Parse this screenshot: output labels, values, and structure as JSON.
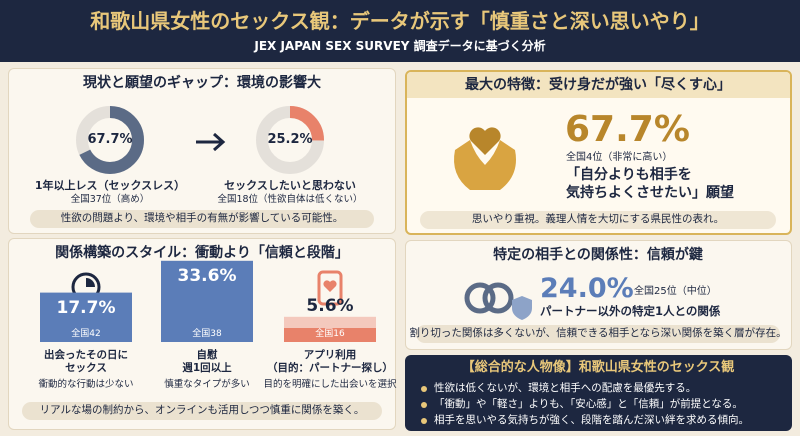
{
  "header": {
    "title": "和歌山県女性のセックス観：データが示す「慎重さと深い思いやり」",
    "subtitle": "JEX JAPAN SEX SURVEY 調査データに基づく分析"
  },
  "gap_section": {
    "title": "現状と願望のギャップ：環境の影響大",
    "stats": [
      {
        "value": 67.7,
        "label": "67.7%",
        "caption": "1年以上レス（セックスレス）",
        "rank": "全国37位（高め）"
      },
      {
        "value": 25.2,
        "label": "25.2%",
        "caption": "セックスしたいと思わない",
        "rank": "全国18位（性欲自体は低くない）"
      }
    ],
    "note": "性欲の問題より、環境や相手の有無が影響している可能性。"
  },
  "style_section": {
    "title": "関係構築のスタイル：衝動より「信頼と段階」",
    "stats": [
      {
        "value": 17.7,
        "label": "17.7%",
        "rank": "全国42",
        "caption": [
          "出会ったその日に",
          "セックス"
        ],
        "comment": "衝動的な行動は少ない"
      },
      {
        "value": 33.6,
        "label": "33.6%",
        "rank": "全国38",
        "caption": [
          "自慰",
          "週1回以上"
        ],
        "comment": "慎重なタイプが多い"
      },
      {
        "value": 5.6,
        "label": "5.6%",
        "rank": "全国16",
        "caption": [
          "アプリ利用",
          "（目的：パートナー探し）"
        ],
        "comment": "目的を明確にした出会いを選択"
      }
    ],
    "note": "リアルな場の制約から、オンラインも活用しつつ慎重に関係を築く。"
  },
  "feature_section": {
    "title": "最大の特徴：受け身だが強い「尽くす心」",
    "value": "67.7%",
    "rank": "全国4位（非常に高い）",
    "desire_lines": [
      "「自分よりも相手を",
      "気持ちよくさせたい」願望"
    ],
    "note": "思いやり重視。義理人情を大切にする県民性の表れ。"
  },
  "partner_section": {
    "title": "特定の相手との関係性：信頼が鍵",
    "value": "24.0%",
    "rank": "全国25位（中位）",
    "caption": "パートナー以外の特定1人との関係",
    "note": "割り切った関係は多くないが、信頼できる相手となら深い関係を築く層が存在。"
  },
  "summary": {
    "title": "【総合的な人物像】和歌山県女性のセックス観",
    "points": [
      "性欲は低くないが、環境と相手への配慮を最優先する。",
      "「衝動」や「軽さ」よりも、「安心感」と「信頼」が前提となる。",
      "相手を思いやる気持ちが強く、段階を踏んだ深い絆を求める傾向。"
    ]
  }
}
